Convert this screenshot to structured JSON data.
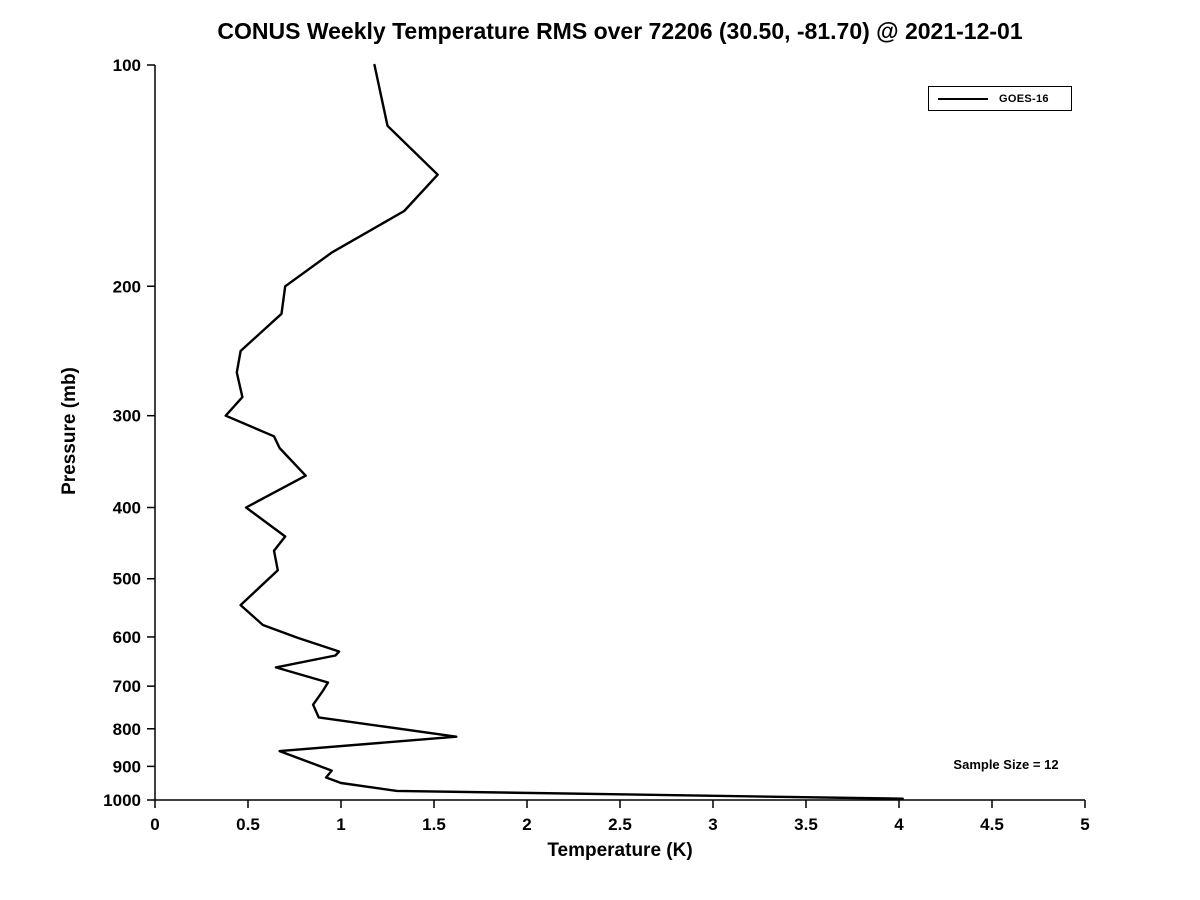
{
  "chart_data": {
    "type": "line",
    "title": "CONUS Weekly Temperature RMS over 72206 (30.50, -81.70) @ 2021-12-01",
    "xlabel": "Temperature (K)",
    "ylabel": "Pressure (mb)",
    "xlim": [
      0,
      5
    ],
    "ylim": [
      100,
      1000
    ],
    "x_scale": "linear",
    "y_scale": "log",
    "y_inverted": true,
    "grid": false,
    "x_ticks": [
      0,
      0.5,
      1,
      1.5,
      2,
      2.5,
      3,
      3.5,
      4,
      4.5,
      5
    ],
    "x_tick_labels": [
      "0",
      "0.5",
      "1",
      "1.5",
      "2",
      "2.5",
      "3",
      "3.5",
      "4",
      "4.5",
      "5"
    ],
    "y_ticks": [
      100,
      200,
      300,
      400,
      500,
      600,
      700,
      800,
      900,
      1000
    ],
    "y_tick_labels": [
      "100",
      "200",
      "300",
      "400",
      "500",
      "600",
      "700",
      "800",
      "900",
      "1000"
    ],
    "legend": {
      "position": "top-right"
    },
    "series": [
      {
        "name": "GOES-16",
        "color": "#000000",
        "points_format": [
          "temperature_K",
          "pressure_mb"
        ],
        "points": [
          [
            1.18,
            100
          ],
          [
            1.25,
            121
          ],
          [
            1.52,
            141
          ],
          [
            1.34,
            158
          ],
          [
            0.95,
            180
          ],
          [
            0.7,
            200
          ],
          [
            0.68,
            218
          ],
          [
            0.46,
            245
          ],
          [
            0.44,
            262
          ],
          [
            0.47,
            283
          ],
          [
            0.38,
            300
          ],
          [
            0.64,
            320
          ],
          [
            0.67,
            332
          ],
          [
            0.81,
            362
          ],
          [
            0.49,
            400
          ],
          [
            0.7,
            438
          ],
          [
            0.64,
            458
          ],
          [
            0.66,
            487
          ],
          [
            0.46,
            543
          ],
          [
            0.58,
            578
          ],
          [
            0.77,
            602
          ],
          [
            0.99,
            628
          ],
          [
            0.97,
            636
          ],
          [
            0.65,
            660
          ],
          [
            0.93,
            692
          ],
          [
            0.9,
            712
          ],
          [
            0.85,
            742
          ],
          [
            0.88,
            772
          ],
          [
            1.62,
            820
          ],
          [
            0.67,
            858
          ],
          [
            0.95,
            912
          ],
          [
            0.92,
            932
          ],
          [
            1.0,
            948
          ],
          [
            1.3,
            972
          ],
          [
            4.02,
            996
          ]
        ]
      }
    ],
    "annotations": [
      {
        "text": "Sample Size = 12",
        "position": "bottom-right"
      }
    ]
  }
}
